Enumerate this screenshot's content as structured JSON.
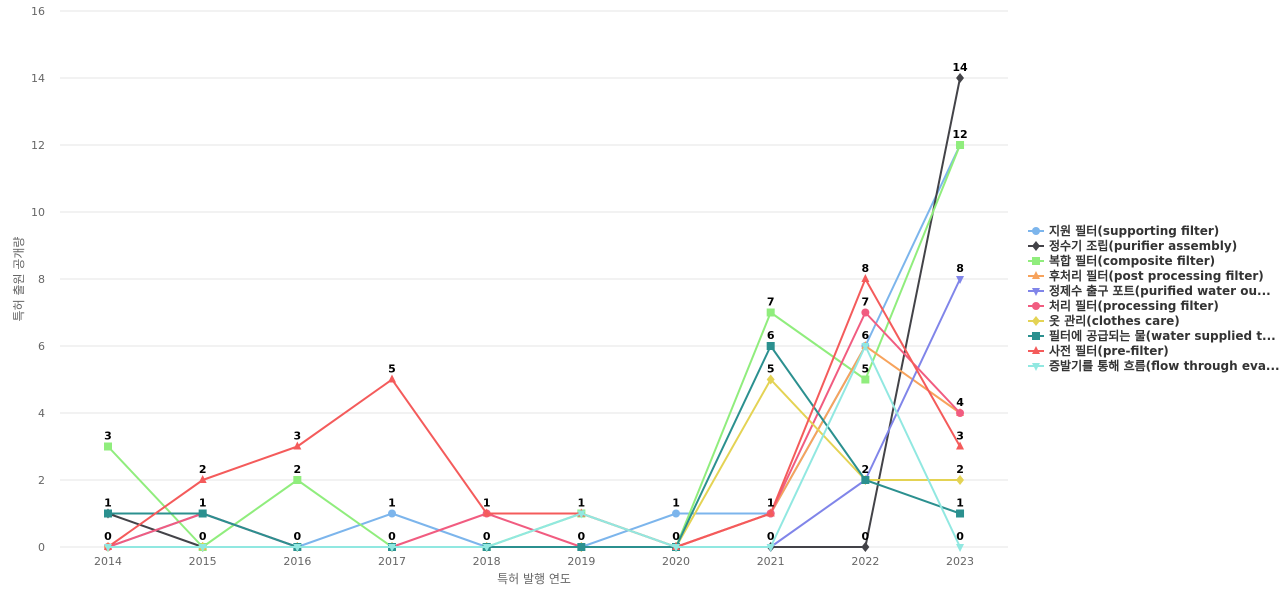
{
  "chart_data": {
    "type": "line",
    "title": "",
    "xlabel": "특허 발행 연도",
    "ylabel": "특허 출원 공개량",
    "ylim": [
      0,
      16
    ],
    "yticks": [
      0,
      2,
      4,
      6,
      8,
      10,
      12,
      14,
      16
    ],
    "x": [
      "2014",
      "2015",
      "2016",
      "2017",
      "2018",
      "2019",
      "2020",
      "2021",
      "2022",
      "2023"
    ],
    "grid": true,
    "legend_position": "right",
    "series": [
      {
        "name": "지원 필터(supporting filter)",
        "color": "#7cb5ec",
        "marker": "circle",
        "values": [
          0,
          1,
          0,
          1,
          0,
          0,
          1,
          1,
          6,
          12
        ]
      },
      {
        "name": "정수기 조립(purifier assembly)",
        "color": "#434348",
        "marker": "diamond",
        "values": [
          1,
          0,
          0,
          0,
          0,
          0,
          0,
          0,
          0,
          14
        ]
      },
      {
        "name": "복합 필터(composite filter)",
        "color": "#90ed7d",
        "marker": "square",
        "values": [
          3,
          0,
          2,
          0,
          0,
          1,
          0,
          7,
          5,
          12
        ]
      },
      {
        "name": "후처리 필터(post processing filter)",
        "color": "#f7a35c",
        "marker": "triangle",
        "values": [
          0,
          0,
          0,
          0,
          0,
          0,
          0,
          1,
          6,
          4
        ]
      },
      {
        "name": "정제수 출구 포트(purified water ou...",
        "color": "#8085e9",
        "marker": "triangle-down",
        "values": [
          0,
          0,
          0,
          0,
          0,
          0,
          0,
          0,
          2,
          8
        ]
      },
      {
        "name": "처리 필터(processing filter)",
        "color": "#f15c80",
        "marker": "circle",
        "values": [
          0,
          1,
          0,
          0,
          1,
          0,
          0,
          1,
          7,
          4
        ]
      },
      {
        "name": "옷 관리(clothes care)",
        "color": "#e4d354",
        "marker": "diamond",
        "values": [
          0,
          0,
          0,
          0,
          0,
          0,
          0,
          5,
          2,
          2
        ]
      },
      {
        "name": "필터에 공급되는 물(water supplied t...",
        "color": "#2b908f",
        "marker": "square",
        "values": [
          1,
          1,
          0,
          0,
          0,
          0,
          0,
          6,
          2,
          1
        ]
      },
      {
        "name": "사전 필터(pre-filter)",
        "color": "#f45b5b",
        "marker": "triangle",
        "values": [
          0,
          2,
          3,
          5,
          1,
          1,
          0,
          1,
          8,
          3
        ]
      },
      {
        "name": "증발기를 통해 흐름(flow through eva...",
        "color": "#91e8e1",
        "marker": "triangle-down",
        "values": [
          0,
          0,
          0,
          0,
          0,
          1,
          0,
          0,
          6,
          0
        ]
      }
    ],
    "data_labels": [
      {
        "x": "2014",
        "text": "3",
        "value": 3
      },
      {
        "x": "2014",
        "text": "1",
        "value": 1
      },
      {
        "x": "2014",
        "text": "0",
        "value": 0
      },
      {
        "x": "2015",
        "text": "2",
        "value": 2
      },
      {
        "x": "2015",
        "text": "1",
        "value": 1
      },
      {
        "x": "2015",
        "text": "0",
        "value": 0
      },
      {
        "x": "2016",
        "text": "3",
        "value": 3
      },
      {
        "x": "2016",
        "text": "2",
        "value": 2
      },
      {
        "x": "2016",
        "text": "0",
        "value": 0
      },
      {
        "x": "2017",
        "text": "5",
        "value": 5
      },
      {
        "x": "2017",
        "text": "1",
        "value": 1
      },
      {
        "x": "2017",
        "text": "0",
        "value": 0
      },
      {
        "x": "2018",
        "text": "1",
        "value": 1
      },
      {
        "x": "2018",
        "text": "0",
        "value": 0
      },
      {
        "x": "2019",
        "text": "1",
        "value": 1
      },
      {
        "x": "2019",
        "text": "0",
        "value": 0
      },
      {
        "x": "2020",
        "text": "1",
        "value": 1
      },
      {
        "x": "2020",
        "text": "0",
        "value": 0
      },
      {
        "x": "2021",
        "text": "7",
        "value": 7
      },
      {
        "x": "2021",
        "text": "6",
        "value": 6
      },
      {
        "x": "2021",
        "text": "5",
        "value": 5
      },
      {
        "x": "2021",
        "text": "1",
        "value": 1
      },
      {
        "x": "2021",
        "text": "0",
        "value": 0
      },
      {
        "x": "2022",
        "text": "8",
        "value": 8
      },
      {
        "x": "2022",
        "text": "7",
        "value": 7
      },
      {
        "x": "2022",
        "text": "6",
        "value": 6
      },
      {
        "x": "2022",
        "text": "5",
        "value": 5
      },
      {
        "x": "2022",
        "text": "2",
        "value": 2
      },
      {
        "x": "2022",
        "text": "0",
        "value": 0
      },
      {
        "x": "2023",
        "text": "14",
        "value": 14
      },
      {
        "x": "2023",
        "text": "12",
        "value": 12
      },
      {
        "x": "2023",
        "text": "8",
        "value": 8
      },
      {
        "x": "2023",
        "text": "4",
        "value": 4
      },
      {
        "x": "2023",
        "text": "3",
        "value": 3
      },
      {
        "x": "2023",
        "text": "2",
        "value": 2
      },
      {
        "x": "2023",
        "text": "1",
        "value": 1
      },
      {
        "x": "2023",
        "text": "0",
        "value": 0
      }
    ]
  }
}
